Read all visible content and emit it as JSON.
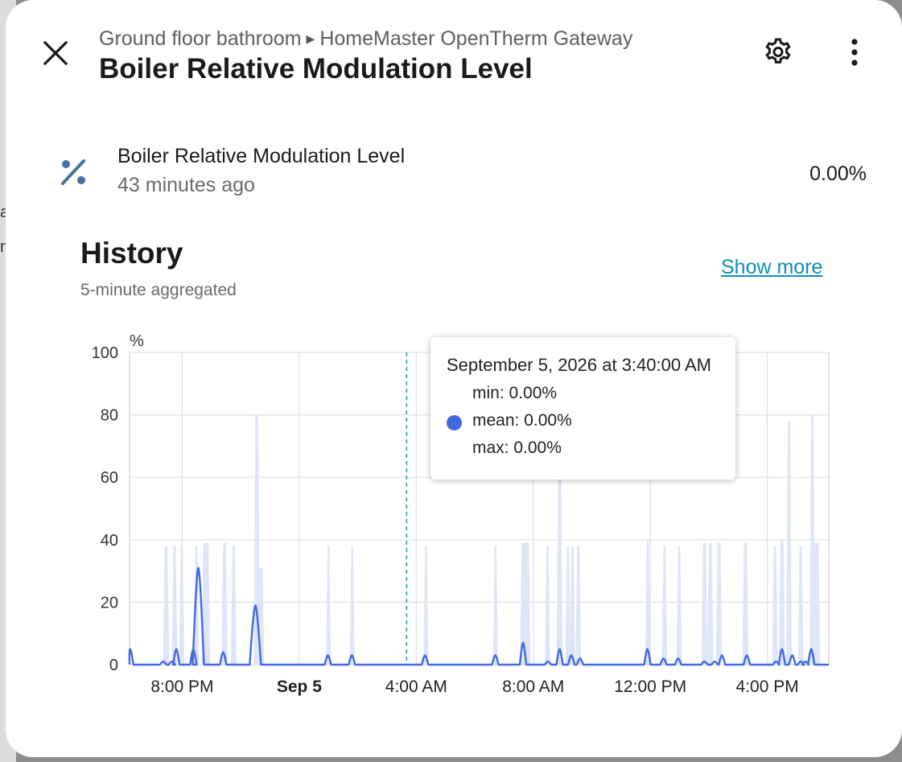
{
  "background": {
    "letters": [
      "a",
      "n"
    ]
  },
  "dialog": {
    "breadcrumb": {
      "area": "Ground floor bathroom",
      "device": "HomeMaster OpenTherm Gateway"
    },
    "title": "Boiler Relative Modulation Level",
    "icons": {
      "close": "close-icon",
      "settings": "gear-icon",
      "more": "more-vertical-icon"
    }
  },
  "entity": {
    "icon": "percent-icon",
    "name": "Boiler Relative Modulation Level",
    "last_changed": "43 minutes ago",
    "state": "0.00%"
  },
  "history": {
    "title": "History",
    "subtitle": "5-minute aggregated",
    "show_more": "Show more"
  },
  "tooltip": {
    "date": "September 5, 2026 at 3:40:00 AM",
    "min": "min: 0.00%",
    "mean": "mean: 0.00%",
    "max": "max: 0.00%"
  },
  "colors": {
    "accent": "#4169e1",
    "band": "#dde5f6",
    "hover_line": "#1ea0c8",
    "link": "#0a8fb8"
  },
  "chart_data": {
    "type": "line",
    "ylabel": "%",
    "ylim": [
      0,
      100
    ],
    "yticks": [
      0,
      20,
      40,
      60,
      80,
      100
    ],
    "x_range_hours": [
      -5.8,
      18.1
    ],
    "x_ticks": [
      {
        "hour": -4,
        "label": "8:00 PM",
        "bold": false
      },
      {
        "hour": 0,
        "label": "Sep 5",
        "bold": true
      },
      {
        "hour": 4,
        "label": "4:00 AM",
        "bold": false
      },
      {
        "hour": 8,
        "label": "8:00 AM",
        "bold": false
      },
      {
        "hour": 12,
        "label": "12:00 PM",
        "bold": false
      },
      {
        "hour": 16,
        "label": "4:00 PM",
        "bold": false
      }
    ],
    "hover_hour": 3.67,
    "series": [
      {
        "name": "mean",
        "spikes": [
          {
            "hour": -5.78,
            "value": 5
          },
          {
            "hour": -4.65,
            "value": 1
          },
          {
            "hour": -4.35,
            "value": 1
          },
          {
            "hour": -4.2,
            "value": 5
          },
          {
            "hour": -3.62,
            "value": 5
          },
          {
            "hour": -3.45,
            "value": 31
          },
          {
            "hour": -2.6,
            "value": 4
          },
          {
            "hour": -1.5,
            "value": 19
          },
          {
            "hour": 0.98,
            "value": 3
          },
          {
            "hour": 1.8,
            "value": 3
          },
          {
            "hour": 4.3,
            "value": 3
          },
          {
            "hour": 6.7,
            "value": 3
          },
          {
            "hour": 7.65,
            "value": 7
          },
          {
            "hour": 8.5,
            "value": 1
          },
          {
            "hour": 8.9,
            "value": 5
          },
          {
            "hour": 9.3,
            "value": 3
          },
          {
            "hour": 9.6,
            "value": 2
          },
          {
            "hour": 11.9,
            "value": 5
          },
          {
            "hour": 12.45,
            "value": 2
          },
          {
            "hour": 12.95,
            "value": 2
          },
          {
            "hour": 13.85,
            "value": 1
          },
          {
            "hour": 14.2,
            "value": 1
          },
          {
            "hour": 14.45,
            "value": 3
          },
          {
            "hour": 15.3,
            "value": 3
          },
          {
            "hour": 16.3,
            "value": 1
          },
          {
            "hour": 16.5,
            "value": 5
          },
          {
            "hour": 16.85,
            "value": 3
          },
          {
            "hour": 17.15,
            "value": 1
          },
          {
            "hour": 17.3,
            "value": 1
          },
          {
            "hour": 17.5,
            "value": 5
          }
        ]
      },
      {
        "name": "max",
        "bands": [
          {
            "start": -4.6,
            "end": -4.5,
            "value": 38
          },
          {
            "start": -4.3,
            "end": -4.22,
            "value": 38
          },
          {
            "start": -4.05,
            "end": -3.98,
            "value": 38
          },
          {
            "start": -3.55,
            "end": -3.48,
            "value": 38
          },
          {
            "start": -3.28,
            "end": -3.1,
            "value": 39
          },
          {
            "start": -2.6,
            "end": -2.5,
            "value": 39
          },
          {
            "start": -2.28,
            "end": -2.2,
            "value": 38
          },
          {
            "start": -1.5,
            "end": -1.4,
            "value": 80
          },
          {
            "start": -1.4,
            "end": -1.25,
            "value": 31
          },
          {
            "start": 0.97,
            "end": 1.03,
            "value": 38
          },
          {
            "start": 1.78,
            "end": 1.84,
            "value": 38
          },
          {
            "start": 4.3,
            "end": 4.36,
            "value": 38
          },
          {
            "start": 6.68,
            "end": 6.74,
            "value": 38
          },
          {
            "start": 7.6,
            "end": 7.85,
            "value": 39
          },
          {
            "start": 8.45,
            "end": 8.52,
            "value": 38
          },
          {
            "start": 8.85,
            "end": 8.95,
            "value": 63
          },
          {
            "start": 9.15,
            "end": 9.22,
            "value": 38
          },
          {
            "start": 9.3,
            "end": 9.38,
            "value": 38
          },
          {
            "start": 9.5,
            "end": 9.58,
            "value": 38
          },
          {
            "start": 11.88,
            "end": 11.95,
            "value": 40
          },
          {
            "start": 12.45,
            "end": 12.52,
            "value": 38
          },
          {
            "start": 12.95,
            "end": 13.02,
            "value": 38
          },
          {
            "start": 13.8,
            "end": 13.9,
            "value": 39
          },
          {
            "start": 14.0,
            "end": 14.1,
            "value": 39
          },
          {
            "start": 14.3,
            "end": 14.4,
            "value": 39
          },
          {
            "start": 15.2,
            "end": 15.3,
            "value": 39
          },
          {
            "start": 16.22,
            "end": 16.3,
            "value": 38
          },
          {
            "start": 16.45,
            "end": 16.55,
            "value": 40
          },
          {
            "start": 16.7,
            "end": 16.78,
            "value": 78
          },
          {
            "start": 17.1,
            "end": 17.18,
            "value": 38
          },
          {
            "start": 17.5,
            "end": 17.58,
            "value": 80
          },
          {
            "start": 17.6,
            "end": 17.75,
            "value": 39
          }
        ]
      }
    ]
  }
}
